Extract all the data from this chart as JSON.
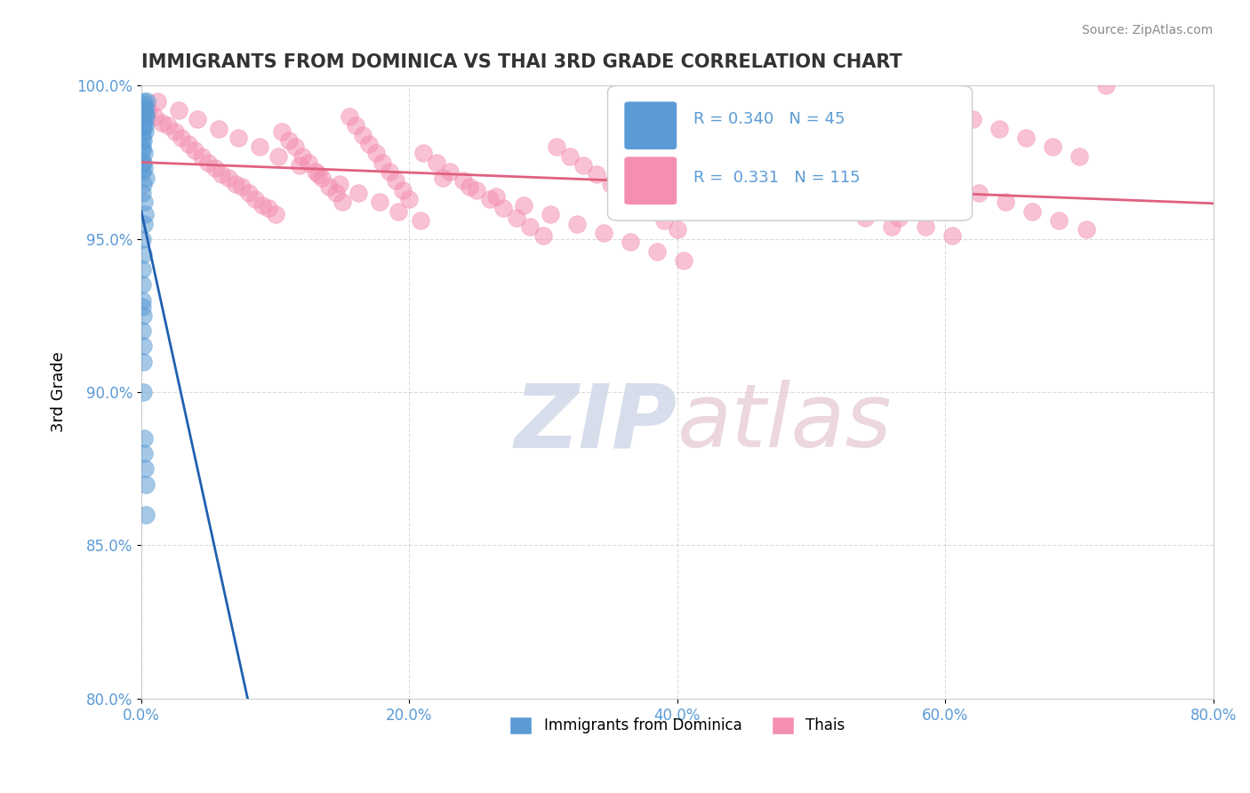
{
  "title": "IMMIGRANTS FROM DOMINICA VS THAI 3RD GRADE CORRELATION CHART",
  "source": "Source: ZipAtlas.com",
  "xlabel": "",
  "ylabel": "3rd Grade",
  "xlim": [
    0.0,
    80.0
  ],
  "ylim": [
    80.0,
    100.0
  ],
  "xticks": [
    0.0,
    20.0,
    40.0,
    60.0,
    80.0
  ],
  "yticks": [
    80.0,
    85.0,
    90.0,
    95.0,
    100.0
  ],
  "watermark": "ZIPatlas",
  "legend_entries": [
    {
      "label": "Immigrants from Dominica",
      "color": "#a8c8e8",
      "R": 0.34,
      "N": 45
    },
    {
      "label": "Thais",
      "color": "#f4a8b8",
      "R": 0.331,
      "N": 115
    }
  ],
  "dominica_x": [
    0.05,
    0.08,
    0.12,
    0.15,
    0.18,
    0.22,
    0.25,
    0.28,
    0.3,
    0.1,
    0.06,
    0.09,
    0.14,
    0.2,
    0.24,
    0.3,
    0.05,
    0.07,
    0.11,
    0.16,
    0.08,
    0.13,
    0.19,
    0.04,
    0.06,
    0.1,
    0.15,
    0.2,
    0.25,
    0.3,
    0.35,
    0.4,
    0.05,
    0.08,
    0.12,
    0.18,
    0.22,
    0.27,
    0.05,
    0.07,
    0.09,
    0.11,
    0.14,
    0.17,
    0.35
  ],
  "dominica_y": [
    98.5,
    99.0,
    99.2,
    98.8,
    99.5,
    99.0,
    98.7,
    99.3,
    99.1,
    99.4,
    98.0,
    97.5,
    98.2,
    97.8,
    98.5,
    97.0,
    96.5,
    97.2,
    96.8,
    97.5,
    95.0,
    94.5,
    95.5,
    93.0,
    92.0,
    91.5,
    92.5,
    88.0,
    87.5,
    86.0,
    99.0,
    99.5,
    98.3,
    97.9,
    98.7,
    97.3,
    96.2,
    95.8,
    94.0,
    93.5,
    92.8,
    91.0,
    90.0,
    88.5,
    87.0
  ],
  "thai_x": [
    0.5,
    1.0,
    1.5,
    2.0,
    2.5,
    3.0,
    3.5,
    4.0,
    4.5,
    5.0,
    5.5,
    6.0,
    6.5,
    7.0,
    7.5,
    8.0,
    8.5,
    9.0,
    9.5,
    10.0,
    10.5,
    11.0,
    11.5,
    12.0,
    12.5,
    13.0,
    13.5,
    14.0,
    14.5,
    15.0,
    15.5,
    16.0,
    16.5,
    17.0,
    17.5,
    18.0,
    18.5,
    19.0,
    19.5,
    20.0,
    21.0,
    22.0,
    23.0,
    24.0,
    25.0,
    26.0,
    27.0,
    28.0,
    29.0,
    30.0,
    31.0,
    32.0,
    33.0,
    34.0,
    35.0,
    36.0,
    37.0,
    38.0,
    39.0,
    40.0,
    42.0,
    44.0,
    46.0,
    48.0,
    50.0,
    52.0,
    54.0,
    56.0,
    58.0,
    60.0,
    62.0,
    64.0,
    66.0,
    68.0,
    70.0,
    72.0,
    1.2,
    2.8,
    4.2,
    5.8,
    7.2,
    8.8,
    10.2,
    11.8,
    13.2,
    14.8,
    16.2,
    17.8,
    19.2,
    20.8,
    22.5,
    24.5,
    26.5,
    28.5,
    30.5,
    32.5,
    34.5,
    36.5,
    38.5,
    40.5,
    42.5,
    44.5,
    46.5,
    48.5,
    50.5,
    52.5,
    54.5,
    56.5,
    58.5,
    60.5,
    62.5,
    64.5,
    66.5,
    68.5,
    70.5
  ],
  "thai_y": [
    99.2,
    99.0,
    98.8,
    98.7,
    98.5,
    98.3,
    98.1,
    97.9,
    97.7,
    97.5,
    97.3,
    97.1,
    97.0,
    96.8,
    96.7,
    96.5,
    96.3,
    96.1,
    96.0,
    95.8,
    98.5,
    98.2,
    98.0,
    97.7,
    97.5,
    97.2,
    97.0,
    96.7,
    96.5,
    96.2,
    99.0,
    98.7,
    98.4,
    98.1,
    97.8,
    97.5,
    97.2,
    96.9,
    96.6,
    96.3,
    97.8,
    97.5,
    97.2,
    96.9,
    96.6,
    96.3,
    96.0,
    95.7,
    95.4,
    95.1,
    98.0,
    97.7,
    97.4,
    97.1,
    96.8,
    96.5,
    96.2,
    95.9,
    95.6,
    95.3,
    97.5,
    97.2,
    96.9,
    96.6,
    96.3,
    96.0,
    95.7,
    95.4,
    99.5,
    99.2,
    98.9,
    98.6,
    98.3,
    98.0,
    97.7,
    100.0,
    99.5,
    99.2,
    98.9,
    98.6,
    98.3,
    98.0,
    97.7,
    97.4,
    97.1,
    96.8,
    96.5,
    96.2,
    95.9,
    95.6,
    97.0,
    96.7,
    96.4,
    96.1,
    95.8,
    95.5,
    95.2,
    94.9,
    94.6,
    94.3,
    97.8,
    97.5,
    97.2,
    96.9,
    96.6,
    96.3,
    96.0,
    95.7,
    95.4,
    95.1,
    96.5,
    96.2,
    95.9,
    95.6,
    95.3
  ],
  "blue_color": "#5b9bd5",
  "pink_color": "#f48fb1",
  "blue_line_color": "#2060b0",
  "pink_line_color": "#e06080",
  "grid_color": "#cccccc",
  "watermark_color": "#d0d8e8",
  "watermark_color2": "#e8d0d8",
  "axis_label_color": "#5b9bd5",
  "tick_label_color": "#5b9bd5"
}
